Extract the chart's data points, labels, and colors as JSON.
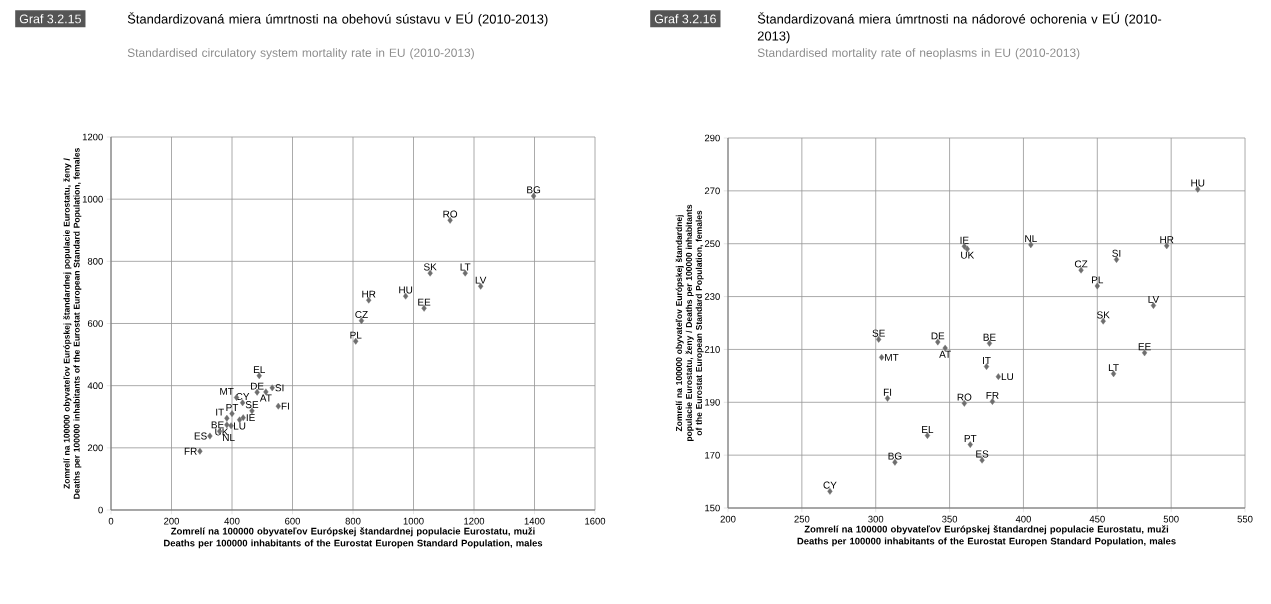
{
  "chart_data": [
    {
      "type": "scatter",
      "title": "Štandardizovaná miera úmrtnosti na obehovú sústavu v EÚ (2010-2013)",
      "subtitle": "Standardised circulatory system mortality rate in EU (2010-2013)",
      "xlabel": "Zomrelí na 100000 obyvateľov Európskej štandardnej populacie Eurostatu, muži Deaths per 100000 inhabitants of the Eurostat Europen Standard Population, males",
      "ylabel": "Zomrelí na 100000 obyvateľov Európskej štandardnej populacie Eurostatu, ženy / Deaths per 100000 inhabitants of the Eurostat European Standard Population, females",
      "annotations": [
        "Graf 3.2.15",
        {
          "text": "BG",
          "x": 1397,
          "y": 1010
        },
        {
          "text": "RO",
          "x": 1121,
          "y": 932
        },
        {
          "text": "SK",
          "x": 1055,
          "y": 762
        },
        {
          "text": "LT",
          "x": 1171,
          "y": 762
        },
        {
          "text": "LV",
          "x": 1222,
          "y": 720
        },
        {
          "text": "HU",
          "x": 974,
          "y": 688
        },
        {
          "text": "EE",
          "x": 1035,
          "y": 649
        },
        {
          "text": "HR",
          "x": 852,
          "y": 675
        },
        {
          "text": "CZ",
          "x": 828,
          "y": 609
        },
        {
          "text": "PL",
          "x": 809,
          "y": 543
        },
        {
          "text": "EL",
          "x": 490,
          "y": 432
        },
        {
          "text": "SI",
          "x": 533,
          "y": 393
        },
        {
          "text": "DE",
          "x": 483,
          "y": 379
        },
        {
          "text": "AT",
          "x": 512,
          "y": 380
        },
        {
          "text": "CY",
          "x": 435,
          "y": 345
        },
        {
          "text": "MT",
          "x": 415,
          "y": 362
        },
        {
          "text": "FI",
          "x": 553,
          "y": 334
        },
        {
          "text": "SE",
          "x": 466,
          "y": 319
        },
        {
          "text": "PT",
          "x": 400,
          "y": 310
        },
        {
          "text": "IT",
          "x": 383,
          "y": 295
        },
        {
          "text": "IE",
          "x": 437,
          "y": 297
        },
        {
          "text": "LU",
          "x": 425,
          "y": 290
        },
        {
          "text": "BE",
          "x": 383,
          "y": 274
        },
        {
          "text": "UK",
          "x": 397,
          "y": 271
        },
        {
          "text": "NL",
          "x": 359,
          "y": 253
        },
        {
          "text": "ES",
          "x": 327,
          "y": 238
        },
        {
          "text": "FR",
          "x": 294,
          "y": 189
        }
      ],
      "series": [
        {
          "color": "#6e6e6e",
          "x": [
            1397,
            1121,
            1055,
            1171,
            1222,
            974,
            1035,
            852,
            828,
            809,
            490,
            533,
            483,
            512,
            435,
            415,
            553,
            466,
            400,
            383,
            437,
            425,
            383,
            397,
            359,
            327,
            294
          ],
          "values": [
            1010,
            932,
            762,
            762,
            720,
            688,
            649,
            675,
            609,
            543,
            432,
            393,
            379,
            380,
            345,
            362,
            334,
            319,
            310,
            295,
            297,
            290,
            274,
            271,
            253,
            238,
            189
          ]
        }
      ],
      "xlim": [
        0,
        1600
      ],
      "ylim": [
        0,
        1200
      ],
      "xticks": [
        0,
        200,
        400,
        600,
        800,
        1000,
        1200,
        1400,
        1600
      ],
      "yticks": [
        0,
        200,
        400,
        600,
        800,
        1000,
        1200
      ],
      "grid": true,
      "marker": "diamond"
    },
    {
      "type": "scatter",
      "title": "Štandardizovaná miera úmrtnosti na nádorové ochorenia v EÚ (2010-2013)",
      "subtitle": "Standardised mortality rate of neoplasms in EU (2010-2013)",
      "xlabel": "Zomrelí na 100000 obyvateľov Európskej štandardnej populacie Eurostatu, muži Deaths per 100000 inhabitants of the Eurostat Europen Standard Population, males",
      "ylabel": "Zomrelí na 100000 obyvateľov Európskej štandardnej populacie Eurostatu, ženy / Deaths per 100000 inhabitants of the Eurostat European Standard Population, females",
      "annotations": [
        "Graf 3.2.16",
        {
          "text": "HU",
          "x": 518,
          "y": 270.6
        },
        {
          "text": "HR",
          "x": 497,
          "y": 249.2
        },
        {
          "text": "NL",
          "x": 405,
          "y": 249.6
        },
        {
          "text": "IE",
          "x": 360,
          "y": 249
        },
        {
          "text": "UK",
          "x": 362,
          "y": 248
        },
        {
          "text": "SI",
          "x": 463,
          "y": 244
        },
        {
          "text": "CZ",
          "x": 439,
          "y": 240
        },
        {
          "text": "PL",
          "x": 450,
          "y": 234
        },
        {
          "text": "LV",
          "x": 488,
          "y": 226.6
        },
        {
          "text": "SK",
          "x": 454,
          "y": 220.7
        },
        {
          "text": "EE",
          "x": 482,
          "y": 208.7
        },
        {
          "text": "LT",
          "x": 461,
          "y": 200.8
        },
        {
          "text": "SE",
          "x": 302,
          "y": 213.8
        },
        {
          "text": "MT",
          "x": 304,
          "y": 207
        },
        {
          "text": "DE",
          "x": 342,
          "y": 212.8
        },
        {
          "text": "AT",
          "x": 347,
          "y": 210.5
        },
        {
          "text": "BE",
          "x": 377,
          "y": 212.3
        },
        {
          "text": "IT",
          "x": 375,
          "y": 203.5
        },
        {
          "text": "LU",
          "x": 383,
          "y": 199.7
        },
        {
          "text": "FI",
          "x": 308,
          "y": 191.5
        },
        {
          "text": "RO",
          "x": 360,
          "y": 189.6
        },
        {
          "text": "FR",
          "x": 379,
          "y": 190.3
        },
        {
          "text": "EL",
          "x": 335,
          "y": 177.4
        },
        {
          "text": "PT",
          "x": 364,
          "y": 174
        },
        {
          "text": "ES",
          "x": 372,
          "y": 168.1
        },
        {
          "text": "BG",
          "x": 313,
          "y": 167.3
        },
        {
          "text": "CY",
          "x": 269,
          "y": 156.3
        }
      ],
      "series": [
        {
          "color": "#6e6e6e",
          "x": [
            518,
            497,
            405,
            360,
            362,
            463,
            439,
            450,
            488,
            454,
            482,
            461,
            302,
            304,
            342,
            347,
            377,
            375,
            383,
            308,
            360,
            379,
            335,
            364,
            372,
            313,
            269
          ],
          "values": [
            270.6,
            249.2,
            249.6,
            249,
            248,
            244,
            240,
            234,
            226.6,
            220.7,
            208.7,
            200.8,
            213.8,
            207,
            212.8,
            210.5,
            212.3,
            203.5,
            199.7,
            191.5,
            189.6,
            190.3,
            177.4,
            174,
            168.1,
            167.3,
            156.3
          ]
        }
      ],
      "xlim": [
        200,
        550
      ],
      "ylim": [
        150,
        290
      ],
      "xticks": [
        200,
        250,
        300,
        350,
        400,
        450,
        500,
        550
      ],
      "yticks": [
        150,
        170,
        190,
        210,
        230,
        250,
        270,
        290
      ],
      "grid": true,
      "marker": "diamond"
    }
  ]
}
